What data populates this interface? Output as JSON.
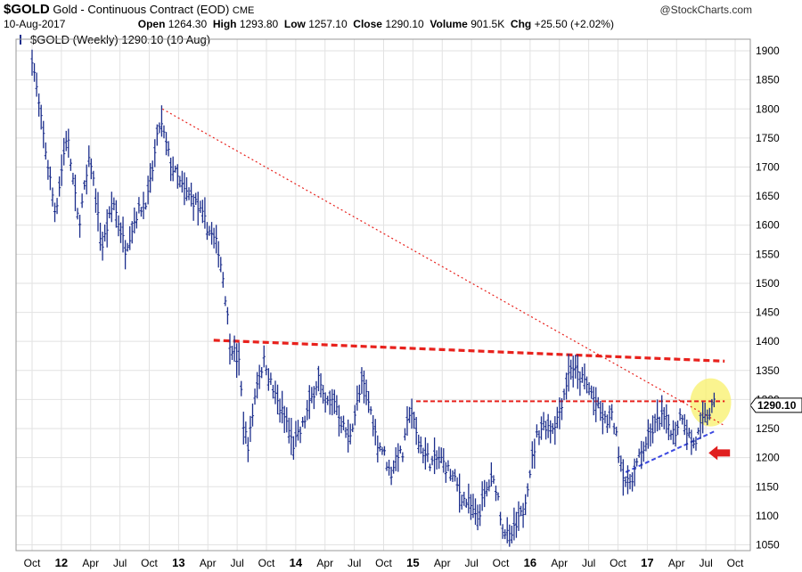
{
  "header": {
    "symbol": "$GOLD",
    "description": "Gold - Continuous Contract (EOD)",
    "exchange": "CME",
    "date": "10-Aug-2017",
    "open_label": "Open",
    "open": "1264.30",
    "high_label": "High",
    "high": "1293.80",
    "low_label": "Low",
    "low": "1257.10",
    "close_label": "Close",
    "close": "1290.10",
    "volume_label": "Volume",
    "volume": "901.5K",
    "chg_label": "Chg",
    "chg": "+25.50 (+2.02%)",
    "brand": "@StockCharts.com"
  },
  "legend": "$GOLD (Weekly) 1290.10 (10 Aug)",
  "colors": {
    "price": "#1c2e8c",
    "trendline_red": "#e8211c",
    "trendline_blue": "#3b48e0",
    "highlight": "#f8f06a",
    "arrow": "#e01e1e",
    "grid": "#e2e2e2"
  },
  "chart_data": {
    "type": "line",
    "style": "ohlc-bars-weekly",
    "y_ticks": [
      1050,
      1100,
      1150,
      1200,
      1250,
      1300,
      1350,
      1400,
      1450,
      1500,
      1550,
      1600,
      1650,
      1700,
      1750,
      1800,
      1850,
      1900
    ],
    "ylim": [
      1040,
      1920
    ],
    "x_ticks": [
      "Oct",
      "12",
      "Apr",
      "Jul",
      "Oct",
      "13",
      "Apr",
      "Jul",
      "Oct",
      "14",
      "Apr",
      "Jul",
      "Oct",
      "15",
      "Apr",
      "Jul",
      "Oct",
      "16",
      "Apr",
      "Jul",
      "Oct",
      "17",
      "Apr",
      "Jul",
      "Oct"
    ],
    "year_ticks": [
      "12",
      "13",
      "14",
      "15",
      "16",
      "17"
    ],
    "grid": true,
    "last_price_label": "1290.10",
    "last_price": 1290.1,
    "series_anchors": [
      [
        0.0,
        1890
      ],
      [
        0.7,
        1790
      ],
      [
        2.0,
        1620
      ],
      [
        3.0,
        1760
      ],
      [
        4.0,
        1600
      ],
      [
        5.0,
        1720
      ],
      [
        6.0,
        1560
      ],
      [
        7.0,
        1640
      ],
      [
        8.0,
        1560
      ],
      [
        9.0,
        1620
      ],
      [
        10.0,
        1650
      ],
      [
        11.0,
        1780
      ],
      [
        12.0,
        1700
      ],
      [
        13.0,
        1660
      ],
      [
        14.0,
        1640
      ],
      [
        15.0,
        1600
      ],
      [
        16.0,
        1560
      ],
      [
        16.5,
        1500
      ],
      [
        17.0,
        1400
      ],
      [
        17.8,
        1360
      ],
      [
        18.2,
        1250
      ],
      [
        18.6,
        1220
      ],
      [
        19.3,
        1330
      ],
      [
        20.0,
        1370
      ],
      [
        20.6,
        1320
      ],
      [
        21.2,
        1290
      ],
      [
        21.9,
        1260
      ],
      [
        22.4,
        1220
      ],
      [
        23.0,
        1240
      ],
      [
        24.0,
        1300
      ],
      [
        24.6,
        1340
      ],
      [
        25.1,
        1290
      ],
      [
        26.0,
        1300
      ],
      [
        26.6,
        1260
      ],
      [
        27.2,
        1230
      ],
      [
        27.9,
        1290
      ],
      [
        28.4,
        1330
      ],
      [
        29.0,
        1290
      ],
      [
        29.6,
        1230
      ],
      [
        30.2,
        1210
      ],
      [
        30.8,
        1170
      ],
      [
        31.4,
        1210
      ],
      [
        31.8,
        1200
      ],
      [
        32.5,
        1290
      ],
      [
        33.0,
        1240
      ],
      [
        33.6,
        1210
      ],
      [
        34.3,
        1190
      ],
      [
        35.0,
        1200
      ],
      [
        35.7,
        1180
      ],
      [
        36.3,
        1160
      ],
      [
        37.0,
        1130
      ],
      [
        37.6,
        1120
      ],
      [
        38.2,
        1090
      ],
      [
        38.8,
        1130
      ],
      [
        39.4,
        1160
      ],
      [
        39.9,
        1150
      ],
      [
        40.4,
        1080
      ],
      [
        41.0,
        1060
      ],
      [
        41.6,
        1080
      ],
      [
        42.2,
        1110
      ],
      [
        42.8,
        1180
      ],
      [
        43.4,
        1240
      ],
      [
        44.0,
        1260
      ],
      [
        44.6,
        1250
      ],
      [
        45.2,
        1270
      ],
      [
        45.8,
        1320
      ],
      [
        46.3,
        1360
      ],
      [
        46.9,
        1340
      ],
      [
        47.5,
        1330
      ],
      [
        48.1,
        1310
      ],
      [
        48.7,
        1280
      ],
      [
        49.3,
        1260
      ],
      [
        49.9,
        1270
      ],
      [
        50.5,
        1200
      ],
      [
        51.1,
        1150
      ],
      [
        51.6,
        1170
      ],
      [
        52.2,
        1200
      ],
      [
        52.8,
        1230
      ],
      [
        53.4,
        1250
      ],
      [
        54.0,
        1270
      ],
      [
        54.6,
        1260
      ],
      [
        55.2,
        1240
      ],
      [
        55.8,
        1280
      ],
      [
        56.4,
        1240
      ],
      [
        56.9,
        1220
      ],
      [
        57.4,
        1250
      ],
      [
        57.9,
        1270
      ],
      [
        58.3,
        1280
      ],
      [
        58.6,
        1290
      ]
    ],
    "trendlines": [
      {
        "color": "red",
        "style": "dotted",
        "from": [
          11.2,
          1800
        ],
        "to": [
          59.5,
          1255
        ]
      },
      {
        "color": "red",
        "style": "dashed-bold",
        "from": [
          15.6,
          1402
        ],
        "to": [
          59.5,
          1366
        ]
      },
      {
        "color": "red",
        "style": "dashed",
        "from": [
          33.0,
          1297
        ],
        "to": [
          59.5,
          1297
        ]
      },
      {
        "color": "blue",
        "style": "dashed",
        "from": [
          51.0,
          1175
        ],
        "to": [
          58.6,
          1245
        ]
      }
    ]
  }
}
